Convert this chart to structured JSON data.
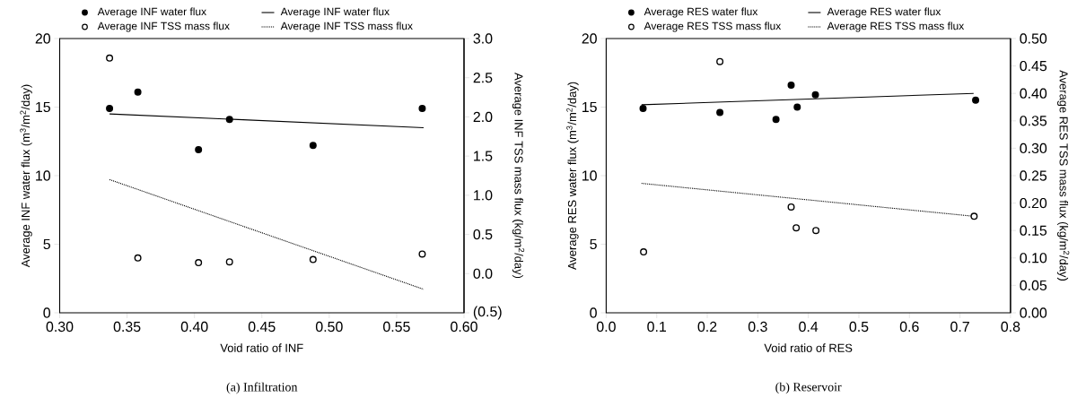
{
  "chart_data": [
    {
      "type": "scatter",
      "title": "(a)  Infiltration",
      "xlabel": "Void ratio of INF",
      "ylabel": "Average INF water flux (m$^{3}$/m$^{2}$/day)",
      "y2label": "Average INF TSS mass flux (kg/m$^{2}$/day)",
      "legend": "top",
      "xlim": [
        0.3,
        0.6
      ],
      "xticks": [
        {
          "value": 0.3,
          "label": "0.30"
        },
        {
          "value": 0.35,
          "label": "0.35"
        },
        {
          "value": 0.4,
          "label": "0.40"
        },
        {
          "value": 0.45,
          "label": "0.45"
        },
        {
          "value": 0.5,
          "label": "0.50"
        },
        {
          "value": 0.55,
          "label": "0.55"
        },
        {
          "value": 0.6,
          "label": "0.60"
        }
      ],
      "ylim": [
        0,
        20
      ],
      "yticks": [
        0,
        5,
        10,
        15,
        20
      ],
      "y2lim": [
        -0.5,
        3.0
      ],
      "y2ticks": [
        {
          "value": -0.5,
          "label": "(0.5)"
        },
        {
          "value": 0,
          "label": "0.0"
        },
        {
          "value": 0.5,
          "label": "0.5"
        },
        {
          "value": 1.0,
          "label": "1.0"
        },
        {
          "value": 1.5,
          "label": "1.5"
        },
        {
          "value": 2.0,
          "label": "2.0"
        },
        {
          "value": 2.5,
          "label": "2.5"
        },
        {
          "value": 3.0,
          "label": "3.0"
        }
      ],
      "series": [
        {
          "name": "Average INF water flux",
          "type": "scatter",
          "marker": "circle",
          "axis": "y",
          "color": "#000000",
          "x": [
            0.337,
            0.358,
            0.403,
            0.426,
            0.488,
            0.569
          ],
          "values": [
            14.9,
            16.1,
            11.9,
            14.1,
            12.2,
            14.9
          ]
        },
        {
          "name": "Average INF TSS mass flux",
          "type": "scatter",
          "marker": "circle",
          "axis": "y2",
          "color": "#000000",
          "x": [
            0.337,
            0.358,
            0.403,
            0.426,
            0.488,
            0.569
          ],
          "values": [
            2.75,
            0.2,
            0.14,
            0.15,
            0.18,
            0.25
          ]
        },
        {
          "name": "Average INF water flux",
          "type": "line",
          "marker": "none",
          "line_style": "solid",
          "axis": "y",
          "color": "#000000",
          "x": [
            0.337,
            0.57
          ],
          "values": [
            14.5,
            13.5
          ]
        },
        {
          "name": "Average INF TSS mass flux",
          "type": "line",
          "marker": "none",
          "line_style": "dotted",
          "axis": "y2",
          "color": "#000000",
          "x": [
            0.337,
            0.57
          ],
          "values": [
            1.2,
            -0.2
          ]
        }
      ]
    },
    {
      "type": "scatter",
      "title": "(b)  Reservoir",
      "xlabel": "Void ratio of RES",
      "ylabel": "Average RES water flux (m$^{3}$/m$^{2}$/day)",
      "y2label": "Average RES TSS mass flux (kg/m$^{2}$/day)",
      "legend": "top",
      "xlim": [
        0.0,
        0.8
      ],
      "xticks": [
        {
          "value": 0.0,
          "label": "0.0"
        },
        0.1,
        0.2,
        0.3,
        0.4,
        0.5,
        0.6,
        0.7,
        0.8
      ],
      "ylim": [
        0,
        20
      ],
      "yticks": [
        0,
        5,
        10,
        15,
        20
      ],
      "y2lim": [
        0.0,
        0.5
      ],
      "y2ticks": [
        {
          "value": 0,
          "label": "0.00"
        },
        {
          "value": 0.05,
          "label": "0.05"
        },
        {
          "value": 0.1,
          "label": "0.10"
        },
        {
          "value": 0.15,
          "label": "0.15"
        },
        {
          "value": 0.2,
          "label": "0.20"
        },
        {
          "value": 0.25,
          "label": "0.25"
        },
        {
          "value": 0.3,
          "label": "0.30"
        },
        {
          "value": 0.35,
          "label": "0.35"
        },
        {
          "value": 0.4,
          "label": "0.40"
        },
        {
          "value": 0.45,
          "label": "0.45"
        },
        {
          "value": 0.5,
          "label": "0.50"
        }
      ],
      "series": [
        {
          "name": "Average RES water flux",
          "type": "scatter",
          "marker": "circle",
          "axis": "y",
          "color": "#000000",
          "x": [
            0.073,
            0.225,
            0.336,
            0.366,
            0.378,
            0.414,
            0.731
          ],
          "values": [
            14.9,
            14.6,
            14.1,
            16.6,
            15.0,
            15.9,
            15.5
          ]
        },
        {
          "name": "Average RES TSS mass flux",
          "type": "scatter",
          "marker": "circle",
          "axis": "y2",
          "color": "#000000",
          "x": [
            0.074,
            0.225,
            0.366,
            0.376,
            0.415,
            0.728
          ],
          "values": [
            0.111,
            0.458,
            0.193,
            0.155,
            0.15,
            0.176
          ]
        },
        {
          "name": "Average RES water flux",
          "type": "line",
          "marker": "none",
          "line_style": "solid",
          "axis": "y",
          "color": "#000000",
          "x": [
            0.07,
            0.727
          ],
          "values": [
            15.17,
            16.0
          ]
        },
        {
          "name": "Average RES TSS mass flux",
          "type": "line",
          "marker": "none",
          "line_style": "dotted",
          "axis": "y2",
          "color": "#000000",
          "x": [
            0.07,
            0.727
          ],
          "values": [
            0.236,
            0.176
          ]
        }
      ]
    }
  ]
}
